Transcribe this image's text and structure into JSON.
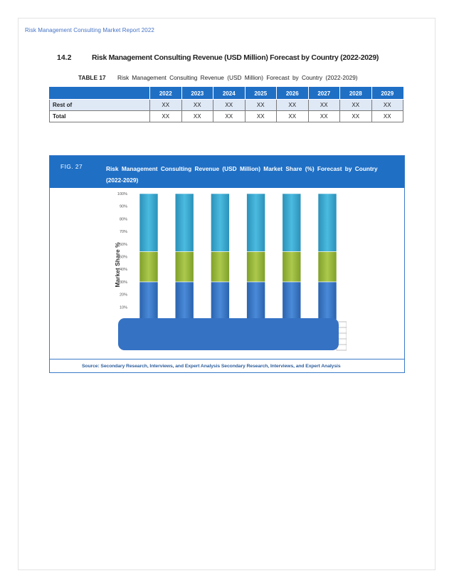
{
  "header": {
    "running_title": "Risk Management Consulting Market Report 2022"
  },
  "section": {
    "number": "14.2",
    "title": "Risk Management Consulting Revenue (USD Million) Forecast by Country (2022-2029)"
  },
  "table": {
    "label": "TABLE 17",
    "caption": "Risk Management Consulting Revenue (USD Million) Forecast by Country (2022-2029)",
    "columns": [
      "",
      "2022",
      "2023",
      "2024",
      "2025",
      "2026",
      "2027",
      "2028",
      "2029"
    ],
    "rows": [
      {
        "label": "Rest of",
        "values": [
          "XX",
          "XX",
          "XX",
          "XX",
          "XX",
          "XX",
          "XX",
          "XX"
        ]
      },
      {
        "label": "Total",
        "values": [
          "XX",
          "XX",
          "XX",
          "XX",
          "XX",
          "XX",
          "XX",
          "XX"
        ]
      }
    ]
  },
  "figure": {
    "label": "FIG. 27",
    "caption": "Risk Management Consulting Revenue (USD Million) Market Share (%) Forecast by Country (2022-2029)",
    "source": "Source: Secondary Research, Interviews, and Expert Analysis Secondary Research, Interviews, and Expert Analysis"
  },
  "chart_data": {
    "type": "bar",
    "stacked": true,
    "categories": [
      "",
      "",
      "",
      "",
      "",
      ""
    ],
    "series": [
      {
        "values": [
          30,
          30,
          30,
          30,
          30,
          30
        ],
        "color": "#3a78c9"
      },
      {
        "values": [
          24,
          24,
          24,
          24,
          24,
          24
        ],
        "color": "#9bbb3c"
      },
      {
        "values": [
          46,
          46,
          46,
          46,
          46,
          46
        ],
        "color": "#3aa6c9"
      }
    ],
    "ylabel": "Market Share %",
    "yticks": [
      "10%",
      "20%",
      "30%",
      "40%",
      "50%",
      "60%",
      "70%",
      "80%",
      "90%",
      "100%"
    ],
    "ylim": [
      0,
      100
    ],
    "grid": false
  }
}
